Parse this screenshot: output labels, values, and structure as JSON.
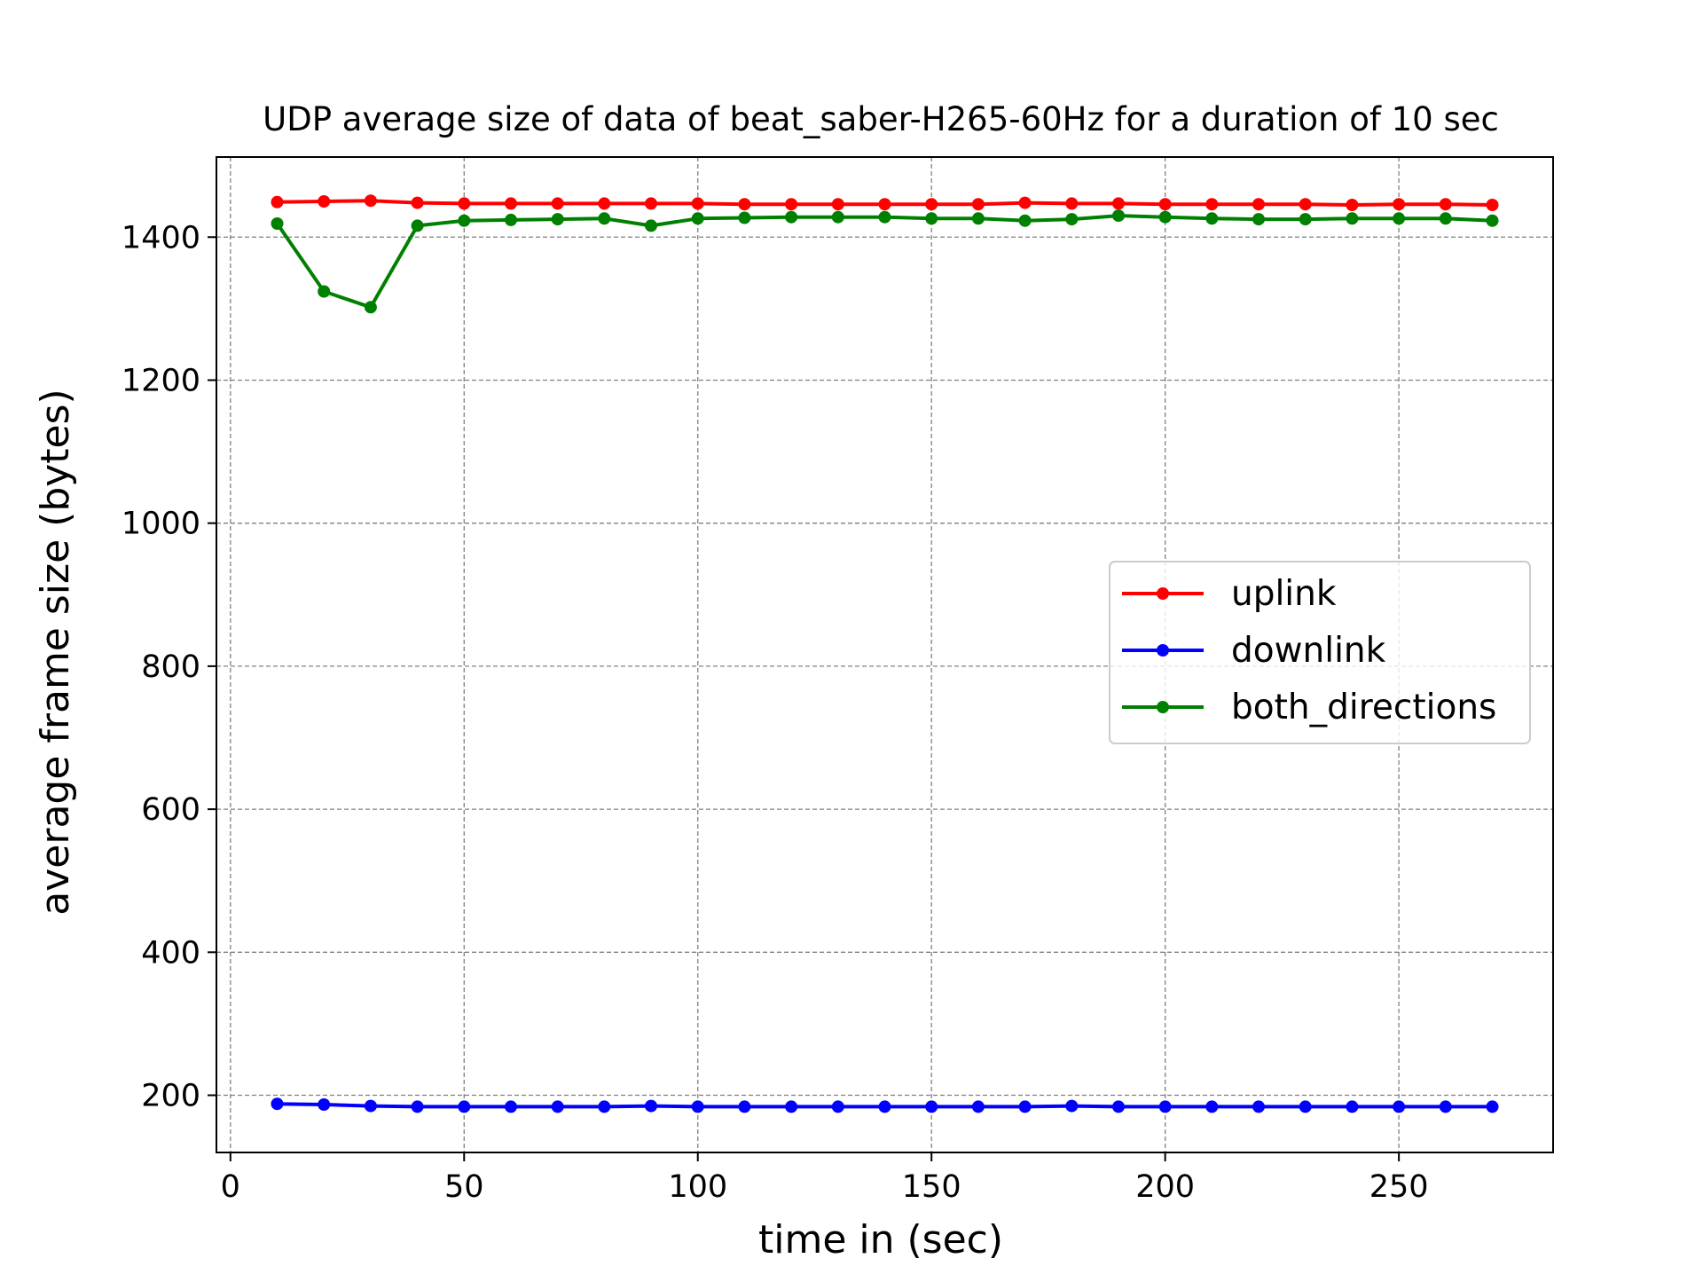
{
  "chart_data": {
    "type": "line",
    "title": "UDP average size of data of beat_saber-H265-60Hz for a duration of 10 sec",
    "xlabel": "time in (sec)",
    "ylabel": "average frame size (bytes)",
    "xlim": [
      -3,
      283
    ],
    "ylim": [
      120,
      1512
    ],
    "xticks": [
      0,
      50,
      100,
      150,
      200,
      250
    ],
    "yticks": [
      200,
      400,
      600,
      800,
      1000,
      1200,
      1400
    ],
    "grid": true,
    "legend_position": "center-right",
    "x": [
      10,
      20,
      30,
      40,
      50,
      60,
      70,
      80,
      90,
      100,
      110,
      120,
      130,
      140,
      150,
      160,
      170,
      180,
      190,
      200,
      210,
      220,
      230,
      240,
      250,
      260,
      270
    ],
    "series": [
      {
        "name": "uplink",
        "color": "#ff0000",
        "values": [
          1449,
          1450,
          1451,
          1448,
          1447,
          1447,
          1447,
          1447,
          1447,
          1447,
          1446,
          1446,
          1446,
          1446,
          1446,
          1446,
          1448,
          1447,
          1447,
          1446,
          1446,
          1446,
          1446,
          1445,
          1446,
          1446,
          1445
        ]
      },
      {
        "name": "downlink",
        "color": "#0000ff",
        "values": [
          188,
          187,
          185,
          184,
          184,
          184,
          184,
          184,
          185,
          184,
          184,
          184,
          184,
          184,
          184,
          184,
          184,
          185,
          184,
          184,
          184,
          184,
          184,
          184,
          184,
          184,
          184
        ]
      },
      {
        "name": "both_directions",
        "color": "#008000",
        "values": [
          1419,
          1324,
          1302,
          1416,
          1423,
          1424,
          1425,
          1426,
          1416,
          1426,
          1427,
          1428,
          1428,
          1428,
          1426,
          1426,
          1423,
          1425,
          1430,
          1428,
          1426,
          1425,
          1425,
          1426,
          1426,
          1426,
          1423
        ]
      }
    ]
  }
}
